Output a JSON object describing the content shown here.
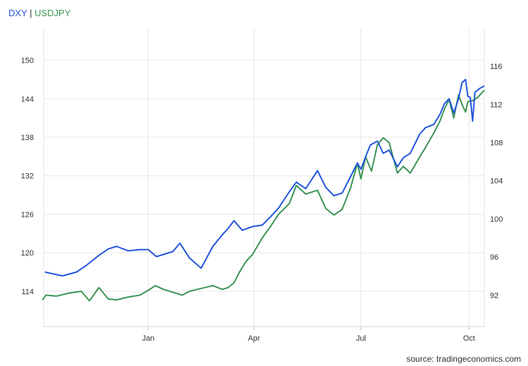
{
  "chart_data": {
    "type": "line",
    "x_axis": {
      "ticks": [
        {
          "date": "2021-01-01",
          "label": "Jan"
        },
        {
          "date": "2021-04-01",
          "label": "Apr"
        },
        {
          "date": "2021-07-01",
          "label": "Jul"
        },
        {
          "date": "2021-10-01",
          "label": "Oct"
        }
      ],
      "range": [
        "2020-10-04",
        "2021-10-14"
      ]
    },
    "y_left": {
      "range": [
        108.5,
        155
      ],
      "ticks": [
        114,
        120,
        126,
        132,
        138,
        144,
        150
      ]
    },
    "y_right": {
      "range": [
        88.7,
        120
      ],
      "ticks": [
        92,
        96,
        100,
        104,
        108,
        112,
        116
      ]
    },
    "grid": true,
    "legend": {
      "position": "top-left",
      "separator": " | ",
      "entries": [
        {
          "name": "DXY",
          "color": "#2255dd"
        },
        {
          "name": "USDJPY",
          "color": "#3a9455"
        }
      ]
    },
    "source_text": "source: tradingeconomics.com",
    "series": [
      {
        "name": "DXY",
        "axis": "left",
        "color": "#2255dd",
        "points": [
          [
            "2020-10-05",
            117.0
          ],
          [
            "2020-10-20",
            116.4
          ],
          [
            "2020-11-01",
            117.0
          ],
          [
            "2020-11-09",
            118.0
          ],
          [
            "2020-11-20",
            119.6
          ],
          [
            "2020-11-28",
            120.6
          ],
          [
            "2020-12-05",
            121.0
          ],
          [
            "2020-12-15",
            120.3
          ],
          [
            "2020-12-25",
            120.5
          ],
          [
            "2021-01-01",
            120.5
          ],
          [
            "2021-01-08",
            119.4
          ],
          [
            "2021-01-15",
            119.8
          ],
          [
            "2021-01-22",
            120.2
          ],
          [
            "2021-01-28",
            121.5
          ],
          [
            "2021-02-05",
            119.2
          ],
          [
            "2021-02-15",
            117.6
          ],
          [
            "2021-02-25",
            121.0
          ],
          [
            "2021-03-05",
            122.8
          ],
          [
            "2021-03-10",
            123.8
          ],
          [
            "2021-03-15",
            125.0
          ],
          [
            "2021-03-22",
            123.5
          ],
          [
            "2021-03-31",
            124.1
          ],
          [
            "2021-04-08",
            124.3
          ],
          [
            "2021-04-15",
            125.6
          ],
          [
            "2021-04-22",
            127.0
          ],
          [
            "2021-05-01",
            129.5
          ],
          [
            "2021-05-07",
            131.0
          ],
          [
            "2021-05-15",
            130.0
          ],
          [
            "2021-05-25",
            132.8
          ],
          [
            "2021-06-01",
            130.2
          ],
          [
            "2021-06-08",
            128.9
          ],
          [
            "2021-06-15",
            129.3
          ],
          [
            "2021-06-22",
            131.8
          ],
          [
            "2021-06-28",
            134.0
          ],
          [
            "2021-07-01",
            133.0
          ],
          [
            "2021-07-05",
            135.0
          ],
          [
            "2021-07-09",
            136.8
          ],
          [
            "2021-07-15",
            137.4
          ],
          [
            "2021-07-20",
            135.5
          ],
          [
            "2021-07-25",
            136.0
          ],
          [
            "2021-08-01",
            133.4
          ],
          [
            "2021-08-06",
            134.8
          ],
          [
            "2021-08-12",
            135.5
          ],
          [
            "2021-08-20",
            138.5
          ],
          [
            "2021-08-25",
            139.5
          ],
          [
            "2021-09-01",
            140.0
          ],
          [
            "2021-09-06",
            141.5
          ],
          [
            "2021-09-10",
            143.2
          ],
          [
            "2021-09-14",
            144.0
          ],
          [
            "2021-09-18",
            141.8
          ],
          [
            "2021-09-22",
            144.0
          ],
          [
            "2021-09-25",
            146.5
          ],
          [
            "2021-09-28",
            147.0
          ],
          [
            "2021-09-30",
            144.4
          ],
          [
            "2021-10-02",
            144.2
          ],
          [
            "2021-10-04",
            140.5
          ],
          [
            "2021-10-06",
            145.0
          ],
          [
            "2021-10-10",
            145.6
          ],
          [
            "2021-10-14",
            146.0
          ]
        ]
      },
      {
        "name": "USDJPY",
        "axis": "right",
        "color": "#3a9455",
        "points": [
          [
            "2020-10-03",
            91.5
          ],
          [
            "2020-10-06",
            92.0
          ],
          [
            "2020-10-15",
            91.9
          ],
          [
            "2020-10-25",
            92.2
          ],
          [
            "2020-11-05",
            92.4
          ],
          [
            "2020-11-12",
            91.4
          ],
          [
            "2020-11-20",
            92.8
          ],
          [
            "2020-11-28",
            91.6
          ],
          [
            "2020-12-05",
            91.5
          ],
          [
            "2020-12-15",
            91.8
          ],
          [
            "2020-12-25",
            92.0
          ],
          [
            "2021-01-01",
            92.5
          ],
          [
            "2021-01-07",
            93.0
          ],
          [
            "2021-01-14",
            92.6
          ],
          [
            "2021-01-22",
            92.3
          ],
          [
            "2021-01-30",
            92.0
          ],
          [
            "2021-02-05",
            92.4
          ],
          [
            "2021-02-15",
            92.7
          ],
          [
            "2021-02-25",
            93.0
          ],
          [
            "2021-03-05",
            92.6
          ],
          [
            "2021-03-10",
            92.8
          ],
          [
            "2021-03-15",
            93.3
          ],
          [
            "2021-03-20",
            94.5
          ],
          [
            "2021-03-25",
            95.5
          ],
          [
            "2021-03-31",
            96.3
          ],
          [
            "2021-04-08",
            98.0
          ],
          [
            "2021-04-15",
            99.2
          ],
          [
            "2021-04-22",
            100.5
          ],
          [
            "2021-05-01",
            101.6
          ],
          [
            "2021-05-07",
            103.5
          ],
          [
            "2021-05-15",
            102.6
          ],
          [
            "2021-05-25",
            103.0
          ],
          [
            "2021-06-01",
            101.1
          ],
          [
            "2021-06-08",
            100.4
          ],
          [
            "2021-06-15",
            101.0
          ],
          [
            "2021-06-22",
            103.2
          ],
          [
            "2021-06-28",
            105.8
          ],
          [
            "2021-07-01",
            104.2
          ],
          [
            "2021-07-05",
            106.5
          ],
          [
            "2021-07-10",
            105.0
          ],
          [
            "2021-07-15",
            107.8
          ],
          [
            "2021-07-20",
            108.5
          ],
          [
            "2021-07-25",
            108.0
          ],
          [
            "2021-08-01",
            104.8
          ],
          [
            "2021-08-06",
            105.5
          ],
          [
            "2021-08-12",
            104.8
          ],
          [
            "2021-08-20",
            106.5
          ],
          [
            "2021-08-25",
            107.5
          ],
          [
            "2021-09-01",
            109.0
          ],
          [
            "2021-09-06",
            110.2
          ],
          [
            "2021-09-10",
            111.5
          ],
          [
            "2021-09-14",
            112.5
          ],
          [
            "2021-09-18",
            110.6
          ],
          [
            "2021-09-22",
            113.0
          ],
          [
            "2021-09-25",
            112.0
          ],
          [
            "2021-09-28",
            111.2
          ],
          [
            "2021-09-30",
            112.3
          ],
          [
            "2021-10-04",
            112.4
          ],
          [
            "2021-10-08",
            112.7
          ],
          [
            "2021-10-14",
            113.5
          ]
        ]
      }
    ]
  }
}
